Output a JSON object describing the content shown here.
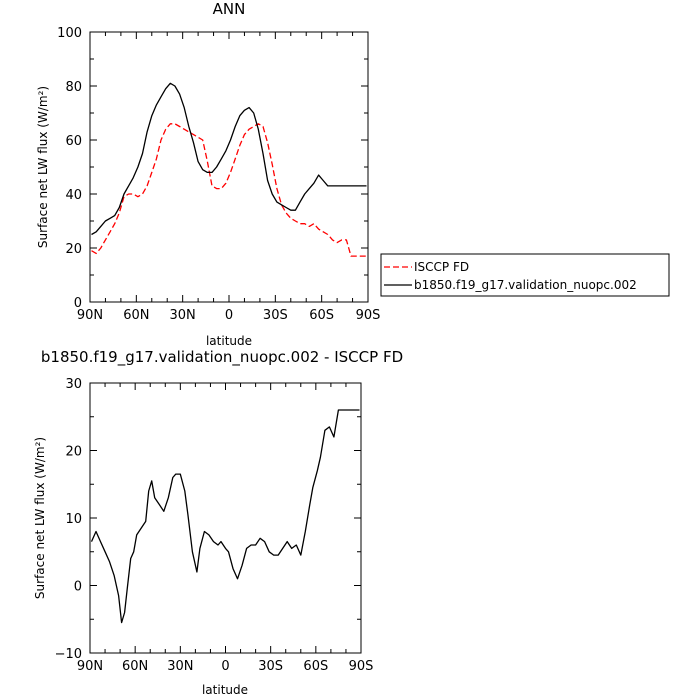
{
  "chart_data": [
    {
      "type": "line",
      "title": "ANN",
      "xlabel": "latitude",
      "ylabel": "Surface net LW flux (W/m²)",
      "xlim": [
        90,
        -90
      ],
      "ylim": [
        0,
        100
      ],
      "x_ticks": [
        90,
        60,
        30,
        0,
        -30,
        -60,
        -90
      ],
      "x_tick_labels": [
        "90N",
        "60N",
        "30N",
        "0",
        "30S",
        "60S",
        "90S"
      ],
      "y_ticks": [
        0,
        20,
        40,
        60,
        80,
        100
      ],
      "y_tick_labels": [
        "0",
        "20",
        "40",
        "60",
        "80",
        "100"
      ],
      "grid": false,
      "legend": "outside-right",
      "series": [
        {
          "name": "ISCCP FD",
          "color": "#ff0000",
          "dash": "dashed",
          "x": [
            89,
            86,
            83,
            80,
            77,
            74,
            71,
            68,
            65,
            62,
            59,
            56,
            53,
            50,
            47,
            44,
            41,
            38,
            35,
            32,
            29,
            26,
            23,
            20,
            17,
            14,
            11,
            8,
            5,
            2,
            -1,
            -4,
            -7,
            -10,
            -13,
            -16,
            -19,
            -22,
            -25,
            -28,
            -31,
            -34,
            -37,
            -40,
            -43,
            -46,
            -49,
            -52,
            -55,
            -58,
            -61,
            -64,
            -67,
            -70,
            -73,
            -76,
            -79,
            -82,
            -85,
            -88,
            -89
          ],
          "y": [
            19,
            18,
            20,
            23,
            26,
            29,
            33,
            39,
            40,
            40,
            39,
            40,
            43,
            48,
            53,
            60,
            64,
            66,
            66,
            65,
            64,
            63,
            62,
            61,
            60,
            52,
            43,
            42,
            42,
            44,
            48,
            53,
            58,
            62,
            64,
            65,
            66,
            65,
            59,
            51,
            42,
            36,
            33,
            31,
            30,
            29,
            29,
            28,
            29,
            27,
            26,
            25,
            23,
            22,
            23,
            23,
            17,
            17,
            17,
            17,
            17
          ]
        },
        {
          "name": "b1850.f19_g17.validation_nuopc.002",
          "color": "#000000",
          "dash": "solid",
          "x": [
            89,
            86,
            83,
            80,
            77,
            74,
            71,
            68,
            65,
            62,
            59,
            56,
            53,
            50,
            47,
            44,
            41,
            38,
            35,
            32,
            29,
            26,
            23,
            20,
            17,
            14,
            11,
            8,
            5,
            2,
            -1,
            -4,
            -7,
            -10,
            -13,
            -16,
            -19,
            -22,
            -25,
            -28,
            -31,
            -34,
            -37,
            -40,
            -43,
            -46,
            -49,
            -52,
            -55,
            -58,
            -61,
            -64,
            -67,
            -70,
            -73,
            -76,
            -79,
            -82,
            -85,
            -88,
            -89
          ],
          "y": [
            25,
            26,
            28,
            30,
            31,
            32,
            35,
            40,
            43,
            46,
            50,
            55,
            63,
            69,
            73,
            76,
            79,
            81,
            80,
            77,
            72,
            65,
            59,
            52,
            49,
            48,
            48,
            50,
            53,
            56,
            60,
            65,
            69,
            71,
            72,
            70,
            64,
            55,
            45,
            40,
            37,
            36,
            35,
            34,
            34,
            37,
            40,
            42,
            44,
            47,
            45,
            43,
            43,
            43,
            43,
            43,
            43,
            43,
            43,
            43,
            43
          ]
        }
      ]
    },
    {
      "type": "line",
      "title": "b1850.f19_g17.validation_nuopc.002 - ISCCP FD",
      "xlabel": "latitude",
      "ylabel": "Surface net LW flux (W/m²)",
      "xlim": [
        90,
        -90
      ],
      "ylim": [
        -10,
        30
      ],
      "x_ticks": [
        90,
        60,
        30,
        0,
        -30,
        -60,
        -90
      ],
      "x_tick_labels": [
        "90N",
        "60N",
        "30N",
        "0",
        "30S",
        "60S",
        "90S"
      ],
      "y_ticks": [
        -10,
        0,
        10,
        20,
        30
      ],
      "y_tick_labels": [
        "−10",
        "0",
        "10",
        "20",
        "30"
      ],
      "grid": false,
      "series": [
        {
          "color": "#000000",
          "dash": "solid",
          "x": [
            89,
            86,
            83,
            80,
            77,
            74,
            71,
            69,
            67,
            65,
            63,
            61,
            59,
            56,
            53,
            51,
            49,
            47,
            44,
            41,
            38,
            35,
            33,
            30,
            27,
            25,
            22,
            19,
            17,
            14,
            11,
            8,
            5,
            3,
            0,
            -2,
            -5,
            -8,
            -11,
            -14,
            -17,
            -20,
            -23,
            -26,
            -29,
            -32,
            -35,
            -38,
            -41,
            -44,
            -47,
            -50,
            -53,
            -56,
            -58,
            -61,
            -63,
            -66,
            -69,
            -72,
            -75,
            -78,
            -81,
            -84,
            -86,
            -89
          ],
          "y": [
            6.5,
            8,
            6.5,
            5,
            3.5,
            1.5,
            -1.5,
            -5.5,
            -4,
            0,
            4,
            5,
            7.5,
            8.5,
            9.5,
            14,
            15.5,
            13,
            12,
            11,
            13,
            16,
            16.5,
            16.5,
            14,
            10.5,
            5,
            2,
            5.5,
            8,
            7.5,
            6.5,
            6,
            6.5,
            5.5,
            5,
            2.5,
            1,
            3,
            5.5,
            6,
            6,
            7,
            6.5,
            5,
            4.5,
            4.5,
            5.5,
            6.5,
            5.5,
            6,
            4.5,
            8,
            12,
            14.5,
            17,
            19,
            23,
            23.5,
            22,
            26,
            26,
            26,
            26,
            26,
            26
          ]
        }
      ]
    }
  ]
}
